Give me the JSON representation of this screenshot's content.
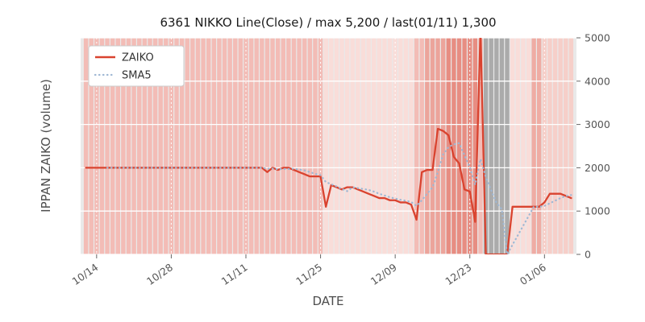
{
  "title": "6361 NIKKO Line(Close) / max 5,200 / last(01/11) 1,300",
  "xlabel": "DATE",
  "ylabel": "IPPAN ZAIKO (volume)",
  "legend": {
    "zaiko": "ZAIKO",
    "sma5": "SMA5"
  },
  "colors": {
    "zaiko_line": "#d9432f",
    "sma5_line": "#9fb8d4",
    "plot_bg": "#e9e9e9",
    "grid": "#ffffff",
    "tick": "#666666",
    "band_medium": "#f3bcb6",
    "band_light": "#f9ddd9",
    "band_dark": "#eca49b",
    "band_darkest": "#e78d82",
    "band_holiday_gray": "#ababab"
  },
  "chart_data": {
    "type": "line",
    "title": "6361 NIKKO Line(Close) / max 5,200 / last(01/11) 1,300",
    "xlabel": "DATE",
    "ylabel": "IPPAN ZAIKO (volume)",
    "ylim": [
      0,
      5000
    ],
    "y_ticks": [
      "0",
      "1000",
      "2000",
      "3000",
      "4000",
      "5000"
    ],
    "x_tick_labels": [
      "10/14",
      "10/28",
      "11/11",
      "11/25",
      "12/09",
      "12/23",
      "01/06"
    ],
    "legend_position": "upper left",
    "grid": true,
    "max_value": 5200,
    "last": {
      "date": "01/11",
      "value": 1300
    },
    "dates": [
      "10/12",
      "10/13",
      "10/14",
      "10/15",
      "10/16",
      "10/17",
      "10/18",
      "10/19",
      "10/20",
      "10/21",
      "10/22",
      "10/23",
      "10/24",
      "10/25",
      "10/26",
      "10/27",
      "10/28",
      "10/29",
      "10/30",
      "10/31",
      "11/01",
      "11/02",
      "11/03",
      "11/04",
      "11/05",
      "11/06",
      "11/07",
      "11/08",
      "11/09",
      "11/10",
      "11/11",
      "11/12",
      "11/13",
      "11/14",
      "11/15",
      "11/16",
      "11/17",
      "11/18",
      "11/19",
      "11/20",
      "11/21",
      "11/22",
      "11/23",
      "11/24",
      "11/25",
      "11/26",
      "11/27",
      "11/28",
      "11/29",
      "11/30",
      "12/01",
      "12/02",
      "12/03",
      "12/04",
      "12/05",
      "12/06",
      "12/07",
      "12/08",
      "12/09",
      "12/10",
      "12/11",
      "12/12",
      "12/13",
      "12/14",
      "12/15",
      "12/16",
      "12/17",
      "12/18",
      "12/19",
      "12/20",
      "12/21",
      "12/22",
      "12/23",
      "12/24",
      "12/25",
      "12/26",
      "12/27",
      "12/28",
      "12/29",
      "12/30",
      "12/31",
      "01/01",
      "01/02",
      "01/03",
      "01/04",
      "01/05",
      "01/06",
      "01/07",
      "01/08",
      "01/09",
      "01/10",
      "01/11"
    ],
    "series": [
      {
        "name": "ZAIKO",
        "style": "solid",
        "values": [
          2000,
          2000,
          2000,
          2000,
          2000,
          2000,
          2000,
          2000,
          2000,
          2000,
          2000,
          2000,
          2000,
          2000,
          2000,
          2000,
          2000,
          2000,
          2000,
          2000,
          2000,
          2000,
          2000,
          2000,
          2000,
          2000,
          2000,
          2000,
          2000,
          2000,
          2000,
          2000,
          2000,
          2000,
          1900,
          2000,
          1950,
          2000,
          2000,
          1950,
          1900,
          1850,
          1800,
          1800,
          1800,
          1100,
          1600,
          1550,
          1500,
          1550,
          1550,
          1500,
          1450,
          1400,
          1350,
          1300,
          1300,
          1250,
          1250,
          1200,
          1200,
          1150,
          800,
          1900,
          1950,
          1950,
          2900,
          2850,
          2750,
          2250,
          2100,
          1500,
          1450,
          750,
          5200,
          0,
          0,
          0,
          0,
          0,
          1100,
          1100,
          1100,
          1100,
          1100,
          1100,
          1200,
          1400,
          1400,
          1400,
          1350,
          1300
        ]
      },
      {
        "name": "SMA5",
        "style": "dotted",
        "derived": "5-day trailing moving average of ZAIKO"
      }
    ],
    "background_bands": [
      {
        "from": "10/12",
        "to": "11/25",
        "color": "#f3bcb6"
      },
      {
        "from": "11/26",
        "to": "12/12",
        "color": "#f9ddd9"
      },
      {
        "from": "12/13",
        "to": "12/14",
        "color": "#f3bcb6"
      },
      {
        "from": "12/15",
        "to": "12/18",
        "color": "#eca49b"
      },
      {
        "from": "12/19",
        "to": "12/24",
        "color": "#e78d82"
      },
      {
        "from": "12/25",
        "to": "12/25",
        "color": "#f3bcb6"
      },
      {
        "from": "12/26",
        "to": "12/30",
        "color": "#ababab"
      },
      {
        "from": "12/31",
        "to": "01/03",
        "color": "#f9ddd9"
      },
      {
        "from": "01/04",
        "to": "01/05",
        "color": "#efaca4"
      },
      {
        "from": "01/06",
        "to": "01/11",
        "color": "#f6cfc9"
      }
    ]
  }
}
